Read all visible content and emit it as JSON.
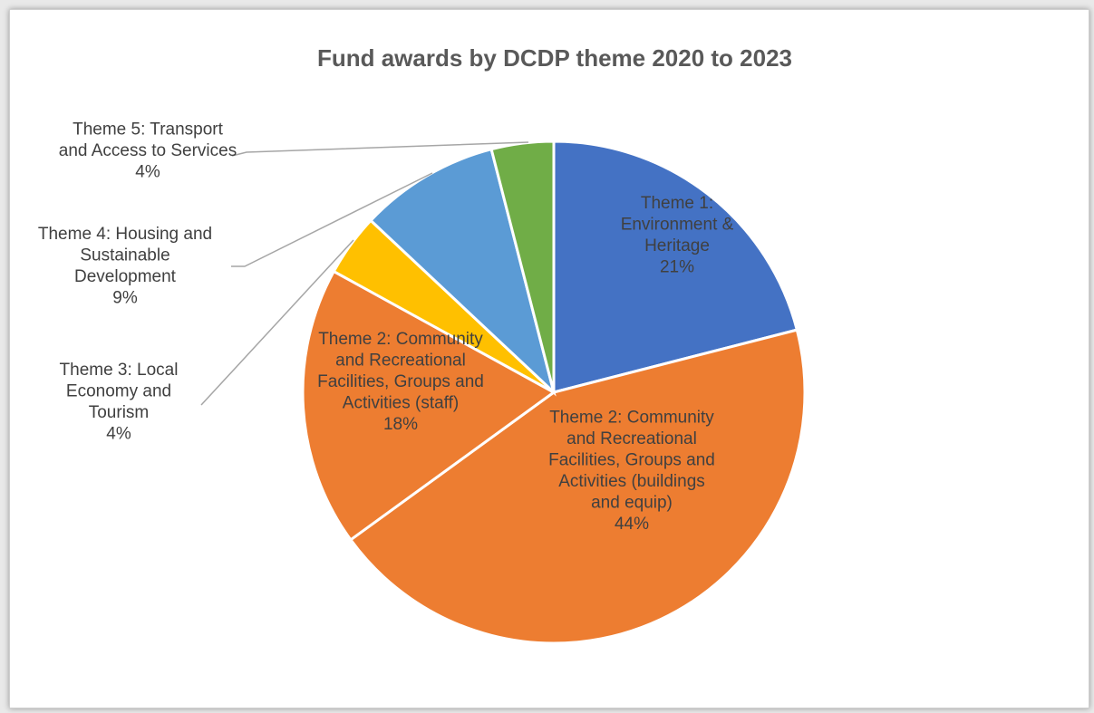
{
  "chart_data": {
    "type": "pie",
    "title": "Fund awards by DCDP theme 2020 to 2023",
    "slices": [
      {
        "name": "Theme 1: Environment & Heritage",
        "label_lines": [
          "Theme 1:",
          "Environment &",
          "Heritage"
        ],
        "pct_label": "21%",
        "value": 21,
        "color": "#4472C4",
        "label_position": "inside"
      },
      {
        "name": "Theme 2: Community and Recreational Facilities, Groups and Activities (buildings and equip)",
        "label_lines": [
          "Theme 2: Community",
          "and Recreational",
          "Facilities, Groups and",
          "Activities (buildings",
          "and equip)"
        ],
        "pct_label": "44%",
        "value": 44,
        "color": "#ED7D31",
        "label_position": "inside"
      },
      {
        "name": "Theme 2: Community and Recreational Facilities, Groups and Activities (staff)",
        "label_lines": [
          "Theme 2: Community",
          "and Recreational",
          "Facilities, Groups and",
          "Activities (staff)"
        ],
        "pct_label": "18%",
        "value": 18,
        "color": "#ED7D31",
        "label_position": "inside"
      },
      {
        "name": "Theme 3: Local Economy and Tourism",
        "label_lines": [
          "Theme 3: Local",
          "Economy and",
          "Tourism"
        ],
        "pct_label": "4%",
        "value": 4,
        "color": "#FFC000",
        "label_position": "outside"
      },
      {
        "name": "Theme 4: Housing and Sustainable Development",
        "label_lines": [
          "Theme 4: Housing and",
          "Sustainable",
          "Development"
        ],
        "pct_label": "9%",
        "value": 9,
        "color": "#5B9BD5",
        "label_position": "outside"
      },
      {
        "name": "Theme 5: Transport and Access to Services",
        "label_lines": [
          "Theme 5: Transport",
          "and Access to Services"
        ],
        "pct_label": "4%",
        "value": 4,
        "color": "#70AD47",
        "label_position": "outside"
      }
    ],
    "start_angle_deg": 0,
    "direction": "clockwise",
    "legend": "none",
    "slice_border_color": "#ffffff",
    "leader_line_color": "#A6A6A6"
  }
}
